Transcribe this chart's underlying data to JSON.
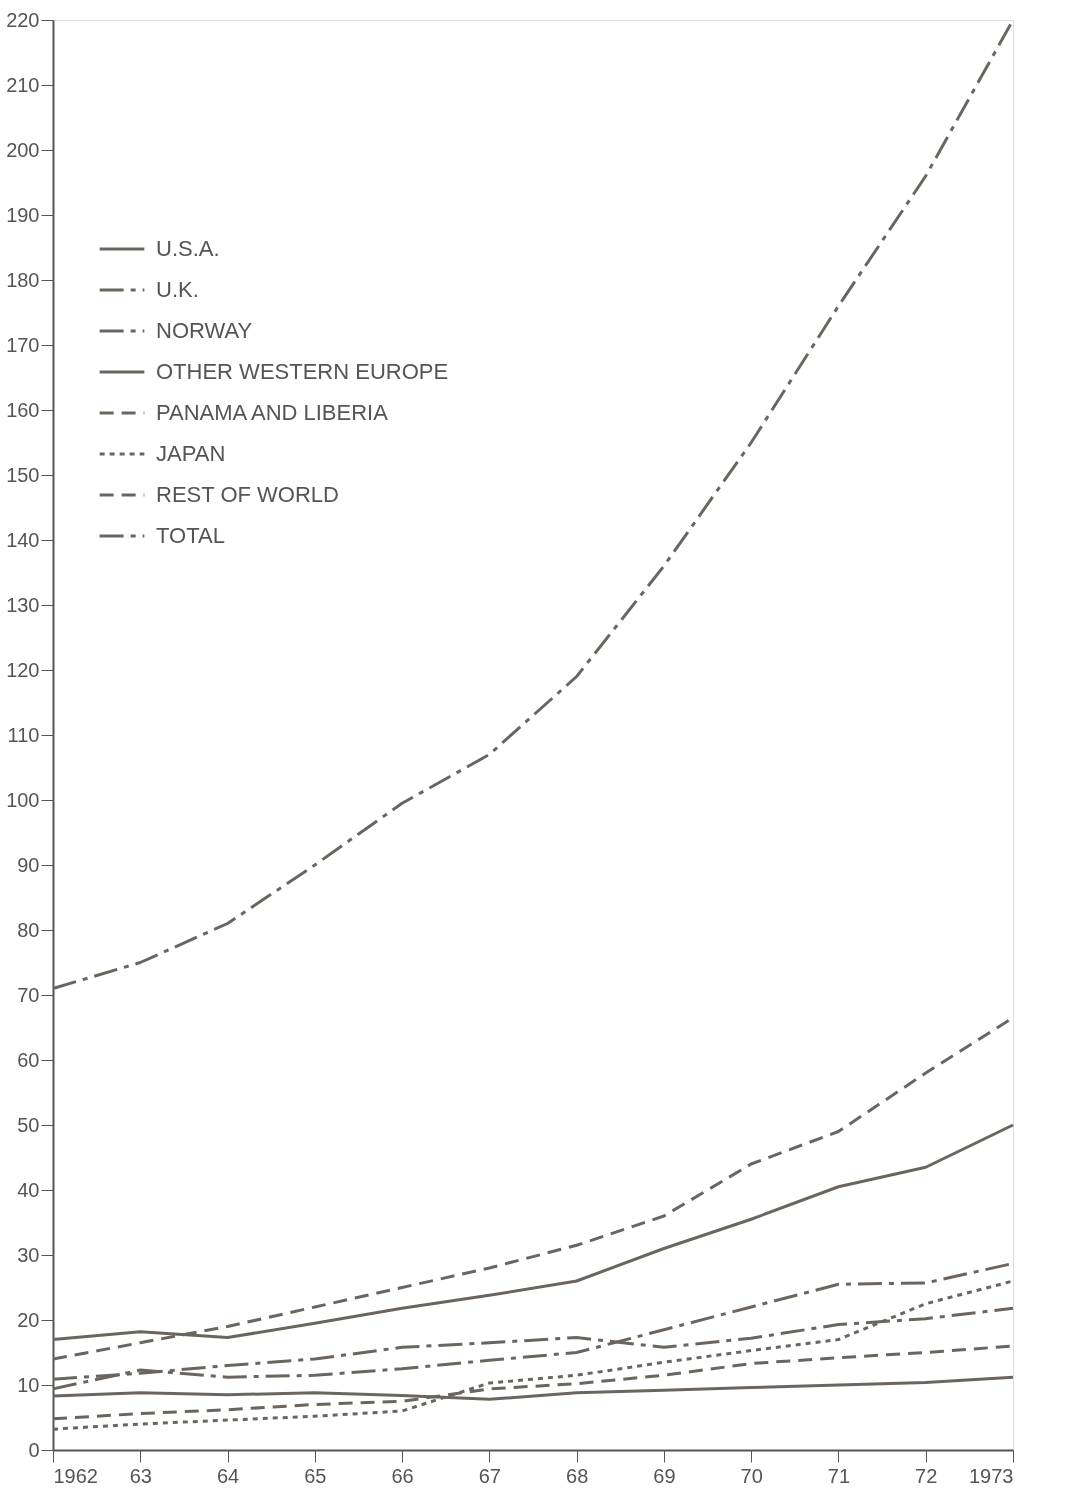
{
  "chart_data": {
    "type": "line",
    "x": [
      1962,
      1963,
      1964,
      1965,
      1966,
      1967,
      1968,
      1969,
      1970,
      1971,
      1972,
      1973
    ],
    "xlim": [
      1962,
      1973
    ],
    "xticks": [
      1962,
      {
        "value": 1963,
        "label": "63"
      },
      {
        "value": 1964,
        "label": "64"
      },
      {
        "value": 1965,
        "label": "65"
      },
      {
        "value": 1966,
        "label": "66"
      },
      {
        "value": 1967,
        "label": "67"
      },
      {
        "value": 1968,
        "label": "68"
      },
      {
        "value": 1969,
        "label": "69"
      },
      {
        "value": 1970,
        "label": "70"
      },
      {
        "value": 1971,
        "label": "71"
      },
      {
        "value": 1972,
        "label": "72"
      },
      1973
    ],
    "ylim": [
      0,
      220
    ],
    "yticks": [
      0,
      10,
      20,
      30,
      40,
      50,
      60,
      70,
      80,
      90,
      100,
      110,
      120,
      130,
      140,
      150,
      160,
      170,
      180,
      190,
      200,
      210,
      220
    ],
    "grid": false,
    "legend": "top left",
    "marker": "none",
    "series": [
      {
        "name": "U.S.A.",
        "color": "#6b6560",
        "line_style": "solid",
        "values": [
          8.3,
          8.8,
          8.5,
          8.8,
          8.4,
          7.8,
          8.8,
          9.2,
          9.6,
          10,
          10.4,
          11.2
        ]
      },
      {
        "name": "U.K.",
        "color": "#6b6560",
        "line_style": "dashdot",
        "values": [
          9.4,
          12.3,
          11.2,
          11.5,
          12.5,
          13.8,
          15,
          18.5,
          22,
          25.5,
          25.7,
          28.7
        ]
      },
      {
        "name": "NORWAY",
        "color": "#6b6560",
        "line_style": "dashdot",
        "values": [
          10.9,
          11.8,
          13,
          14,
          15.8,
          16.5,
          17.3,
          15.8,
          17.2,
          19.3,
          20.2,
          21.8
        ]
      },
      {
        "name": "OTHER WESTERN EUROPE",
        "color": "#6b6560",
        "line_style": "solid",
        "values": [
          17,
          18.2,
          17.3,
          19.5,
          21.8,
          23.8,
          26,
          31,
          35.5,
          40.5,
          43.5,
          50
        ]
      },
      {
        "name": "PANAMA AND LIBERIA",
        "color": "#6b6560",
        "line_style": "dashed",
        "values": [
          14,
          16.5,
          19,
          22,
          25,
          28,
          31.5,
          36,
          44,
          49,
          58,
          66.5
        ]
      },
      {
        "name": "JAPAN",
        "color": "#6b6560",
        "line_style": "dotted",
        "values": [
          3.2,
          4,
          4.6,
          5.2,
          6,
          10.3,
          11.5,
          13.5,
          15.3,
          17,
          22.5,
          26
        ]
      },
      {
        "name": "REST OF WORLD",
        "color": "#6b6560",
        "line_style": "dashed",
        "values": [
          4.8,
          5.6,
          6.2,
          7,
          7.5,
          9.4,
          10.2,
          11.5,
          13.3,
          14.2,
          15,
          16
        ]
      },
      {
        "name": "TOTAL",
        "color": "#6b6560",
        "line_style": "dashdot",
        "values": [
          71,
          75,
          81,
          90,
          99.5,
          107,
          119,
          136,
          155,
          176,
          196,
          220
        ]
      }
    ]
  }
}
